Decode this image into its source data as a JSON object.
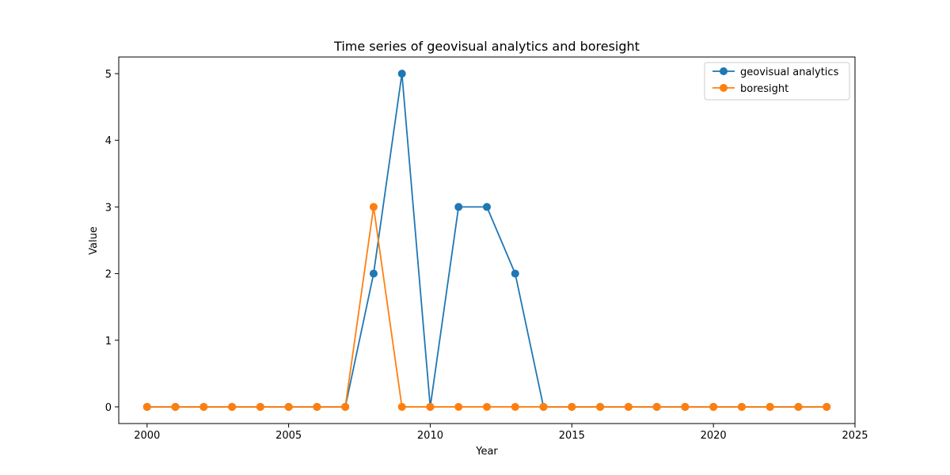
{
  "chart_data": {
    "type": "line",
    "title": "Time series of geovisual analytics and boresight",
    "xlabel": "Year",
    "ylabel": "Value",
    "xlim": [
      1999,
      2025
    ],
    "ylim": [
      -0.25,
      5.25
    ],
    "xticks": [
      2000,
      2005,
      2010,
      2015,
      2020,
      2025
    ],
    "yticks": [
      0,
      1,
      2,
      3,
      4,
      5
    ],
    "grid": false,
    "legend_position": "top-right",
    "x": [
      2000,
      2001,
      2002,
      2003,
      2004,
      2005,
      2006,
      2007,
      2008,
      2009,
      2010,
      2011,
      2012,
      2013,
      2014,
      2015,
      2016,
      2017,
      2018,
      2019,
      2020,
      2021,
      2022,
      2023,
      2024
    ],
    "series": [
      {
        "name": "geovisual analytics",
        "color": "#1f77b4",
        "marker": "circle",
        "values": [
          0,
          0,
          0,
          0,
          0,
          0,
          0,
          0,
          2,
          5,
          0,
          3,
          3,
          2,
          0,
          0,
          0,
          0,
          0,
          0,
          0,
          0,
          0,
          0,
          0
        ]
      },
      {
        "name": "boresight",
        "color": "#ff7f0e",
        "marker": "circle",
        "values": [
          0,
          0,
          0,
          0,
          0,
          0,
          0,
          0,
          3,
          0,
          0,
          0,
          0,
          0,
          0,
          0,
          0,
          0,
          0,
          0,
          0,
          0,
          0,
          0,
          0
        ]
      }
    ]
  }
}
